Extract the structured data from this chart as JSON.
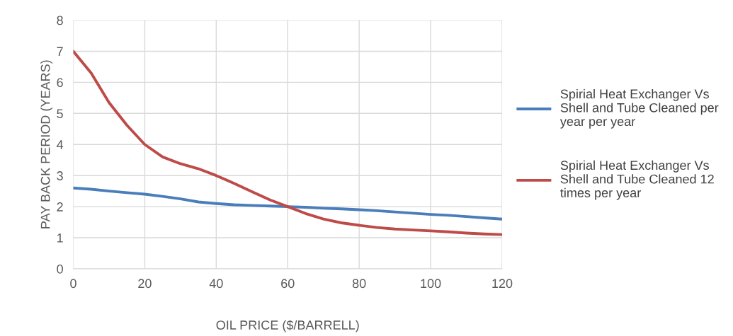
{
  "chart_data": {
    "type": "line",
    "xlabel": "OIL PRICE ($/BARRELL)",
    "ylabel": "PAY BACK PERIOD (YEARS)",
    "x": [
      0,
      5,
      10,
      15,
      20,
      25,
      30,
      35,
      40,
      45,
      50,
      55,
      60,
      65,
      70,
      75,
      80,
      85,
      90,
      95,
      100,
      105,
      110,
      115,
      120
    ],
    "series": [
      {
        "name": "Spirial Heat Exchanger Vs Shell and Tube Cleaned per year per year",
        "color": "#4a7ebb",
        "values": [
          2.6,
          2.56,
          2.5,
          2.45,
          2.4,
          2.33,
          2.25,
          2.15,
          2.1,
          2.06,
          2.04,
          2.02,
          2.0,
          1.98,
          1.95,
          1.93,
          1.9,
          1.87,
          1.83,
          1.79,
          1.75,
          1.72,
          1.68,
          1.64,
          1.6
        ]
      },
      {
        "name": "Spirial Heat Exchanger Vs Shell and Tube Cleaned 12 times per year",
        "color": "#be4b48",
        "values": [
          7,
          6.3,
          5.35,
          4.62,
          4,
          3.6,
          3.38,
          3.22,
          3,
          2.75,
          2.48,
          2.22,
          2,
          1.78,
          1.6,
          1.48,
          1.4,
          1.33,
          1.28,
          1.25,
          1.22,
          1.19,
          1.15,
          1.12,
          1.1
        ]
      }
    ],
    "xlim": [
      0,
      120
    ],
    "xticks": [
      0,
      20,
      40,
      60,
      80,
      100,
      120
    ],
    "ylim": [
      0,
      8
    ],
    "yticks": [
      0,
      1,
      2,
      3,
      4,
      5,
      6,
      7,
      8
    ],
    "grid": true,
    "legend": "right",
    "marker": "none",
    "line_style": "solid"
  }
}
